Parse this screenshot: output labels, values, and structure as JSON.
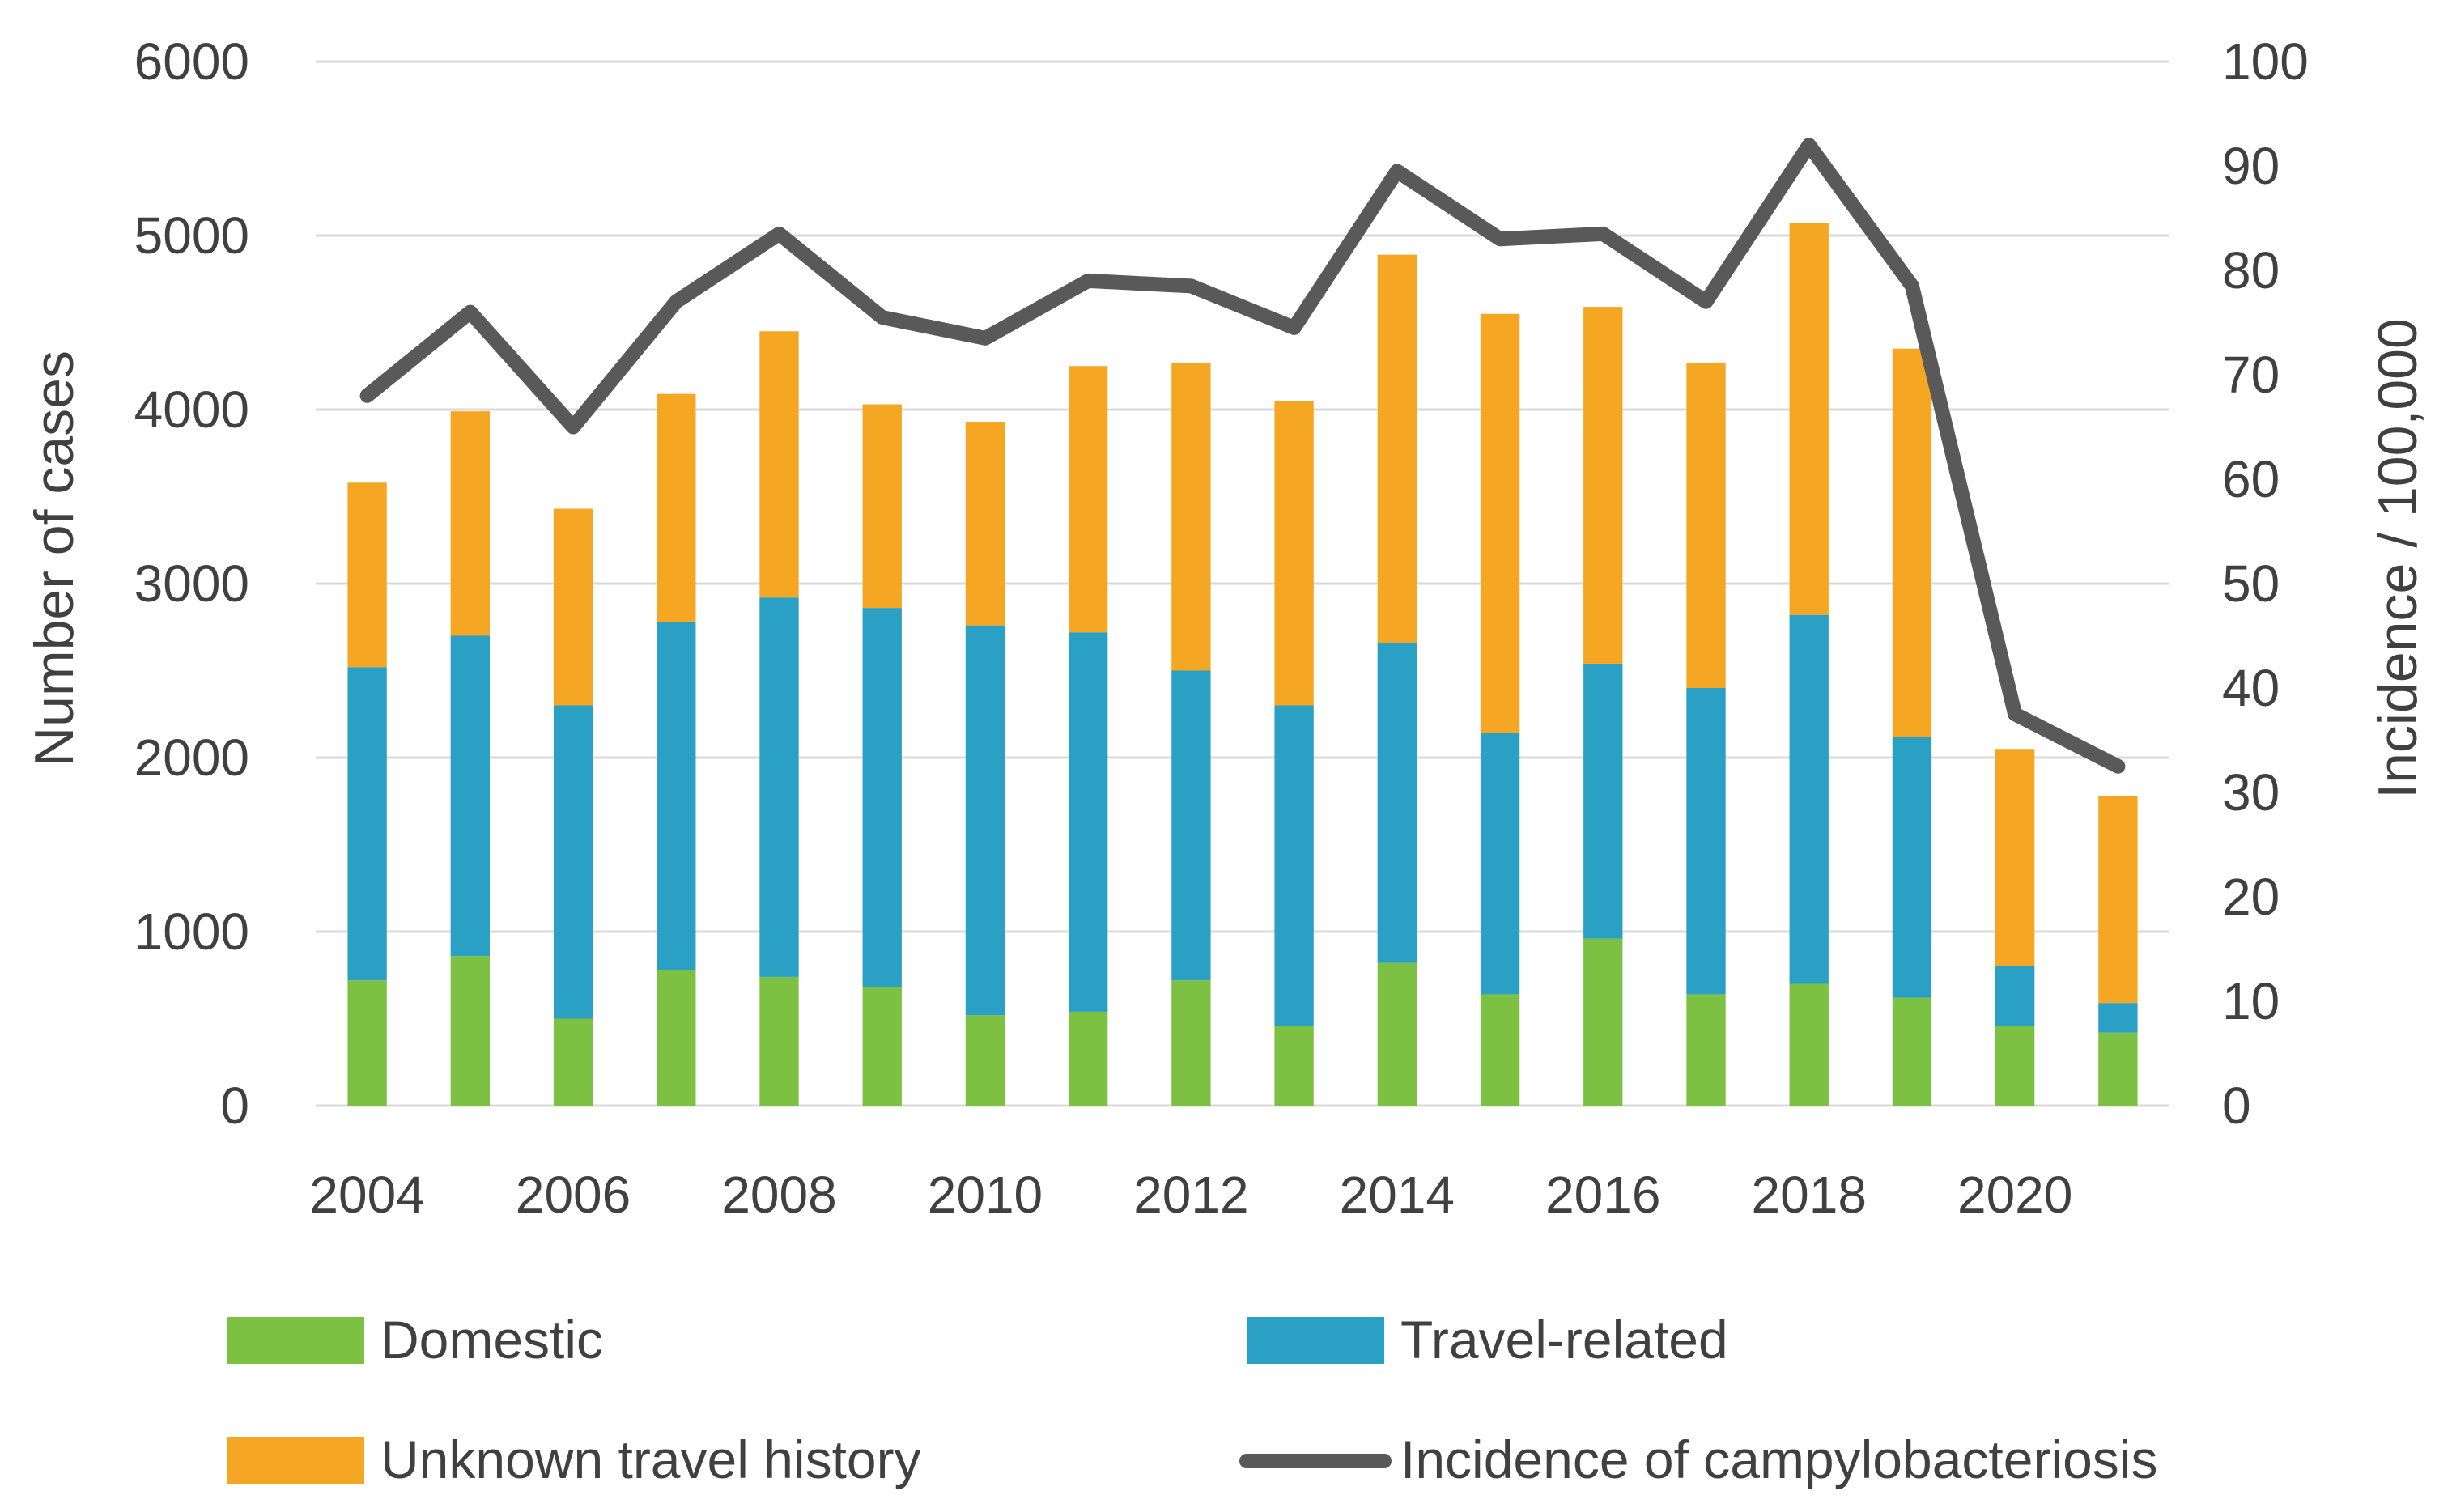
{
  "chart_data": {
    "type": "bar",
    "stacked": true,
    "categories": [
      "2004",
      "2005",
      "2006",
      "2007",
      "2008",
      "2009",
      "2010",
      "2011",
      "2012",
      "2013",
      "2014",
      "2015",
      "2016",
      "2017",
      "2018",
      "2019",
      "2020",
      "2021"
    ],
    "x_tick_labels": [
      "2004",
      "2006",
      "2008",
      "2010",
      "2012",
      "2014",
      "2016",
      "2018",
      "2020"
    ],
    "series": [
      {
        "name": "Domestic",
        "color": "#7dc142",
        "axis": "left",
        "values": [
          720,
          860,
          500,
          780,
          740,
          680,
          520,
          540,
          720,
          460,
          820,
          640,
          960,
          640,
          700,
          620,
          460,
          420
        ]
      },
      {
        "name": "Travel-related",
        "color": "#2aa0c4",
        "axis": "left",
        "values": [
          1800,
          1840,
          1800,
          2000,
          2180,
          2180,
          2240,
          2180,
          1780,
          1840,
          1840,
          1500,
          1580,
          1760,
          2120,
          1500,
          340,
          170
        ]
      },
      {
        "name": "Unknown travel history",
        "color": "#f5a623",
        "axis": "left",
        "values": [
          1060,
          1290,
          1130,
          1310,
          1530,
          1170,
          1170,
          1530,
          1770,
          1750,
          2230,
          2410,
          2050,
          1870,
          2250,
          2230,
          1250,
          1190
        ]
      }
    ],
    "line_series": {
      "name": "Incidence of campylobacteriosis",
      "color": "#595959",
      "axis": "right",
      "values": [
        68,
        76,
        65,
        77,
        83.5,
        75.5,
        73.5,
        79,
        78.5,
        74.5,
        89.5,
        83,
        83.5,
        77,
        92,
        78.5,
        37.5,
        32.5
      ]
    },
    "ylabel": "Number of cases",
    "y2label": "Incidence / 100,000",
    "ylim": [
      0,
      6000
    ],
    "y2lim": [
      0,
      100
    ],
    "y_ticks": [
      0,
      1000,
      2000,
      3000,
      4000,
      5000,
      6000
    ],
    "y2_ticks": [
      0,
      10,
      20,
      30,
      40,
      50,
      60,
      70,
      80,
      90,
      100
    ],
    "grid": true,
    "legend_position": "bottom"
  }
}
